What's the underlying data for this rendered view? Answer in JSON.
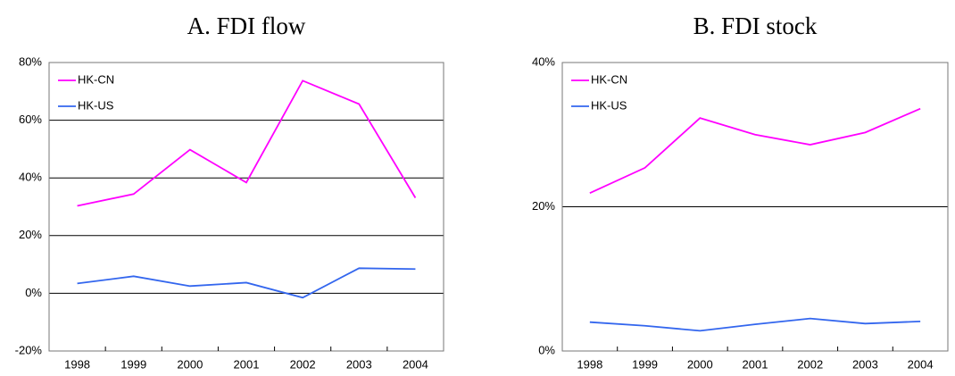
{
  "chart_data": [
    {
      "type": "line",
      "title": "A. FDI flow",
      "categories": [
        "1998",
        "1999",
        "2000",
        "2001",
        "2002",
        "2003",
        "2004"
      ],
      "series": [
        {
          "name": "HK-CN",
          "color": "#ff00ff",
          "values": [
            30.3,
            34.4,
            49.8,
            38.4,
            73.7,
            65.6,
            33.1
          ]
        },
        {
          "name": "HK-US",
          "color": "#3366ee",
          "values": [
            3.4,
            5.9,
            2.5,
            3.7,
            -1.5,
            8.7,
            8.4
          ]
        }
      ],
      "ylim": [
        -20,
        80
      ],
      "yticks": [
        {
          "value": -20,
          "label": "-20%"
        },
        {
          "value": 0,
          "label": "0%"
        },
        {
          "value": 20,
          "label": "20%"
        },
        {
          "value": 40,
          "label": "40%"
        },
        {
          "value": 60,
          "label": "60%"
        },
        {
          "value": 80,
          "label": "80%"
        }
      ],
      "grid": true,
      "legend": "upper left"
    },
    {
      "type": "line",
      "title": "B. FDI stock",
      "categories": [
        "1998",
        "1999",
        "2000",
        "2001",
        "2002",
        "2003",
        "2004"
      ],
      "series": [
        {
          "name": "HK-CN",
          "color": "#ff00ff",
          "values": [
            21.9,
            25.4,
            32.3,
            30.0,
            28.6,
            30.3,
            33.6
          ]
        },
        {
          "name": "HK-US",
          "color": "#3366ee",
          "values": [
            4.0,
            3.5,
            2.8,
            3.7,
            4.5,
            3.8,
            4.1
          ]
        }
      ],
      "ylim": [
        0,
        40
      ],
      "yticks": [
        {
          "value": 0,
          "label": "0%"
        },
        {
          "value": 20,
          "label": "20%"
        },
        {
          "value": 40,
          "label": "40%"
        }
      ],
      "grid": true,
      "legend": "upper left"
    }
  ]
}
